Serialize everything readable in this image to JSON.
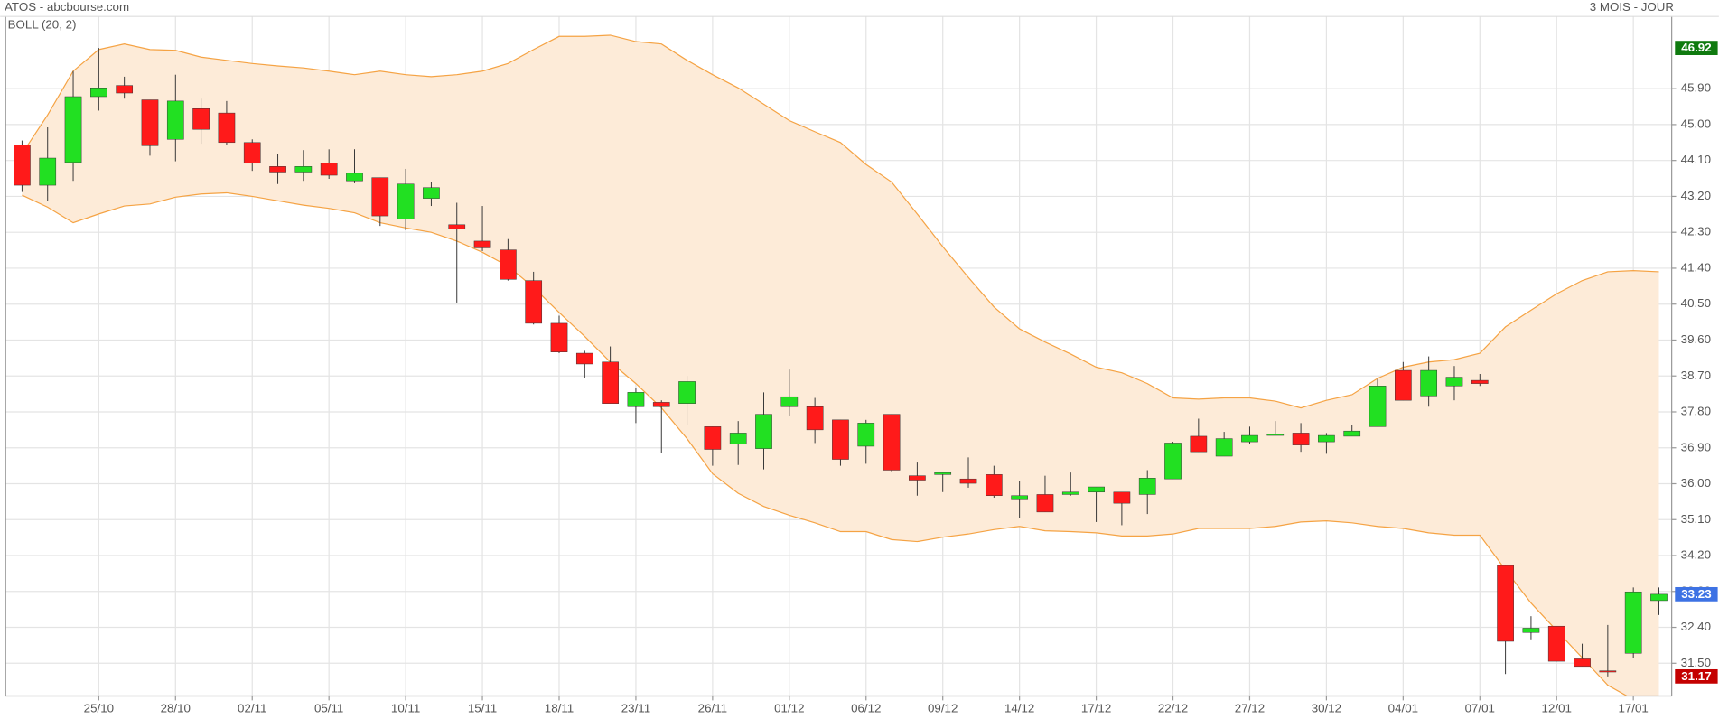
{
  "chart_data": {
    "type": "candlestick",
    "title": "ATOS - abcbourse.com",
    "subtitle": "3 MOIS - JOUR",
    "categories": [
      null,
      null,
      null,
      "25/10",
      null,
      null,
      "28/10",
      null,
      null,
      "02/11",
      null,
      null,
      "05/11",
      null,
      null,
      "10/11",
      null,
      null,
      "15/11",
      null,
      null,
      "18/11",
      null,
      null,
      "23/11",
      null,
      null,
      "26/11",
      null,
      null,
      "01/12",
      null,
      null,
      "06/12",
      null,
      null,
      "09/12",
      null,
      null,
      "14/12",
      null,
      null,
      "17/12",
      null,
      null,
      "22/12",
      null,
      null,
      "27/12",
      null,
      null,
      "30/12",
      null,
      null,
      "04/01",
      null,
      null,
      "07/01",
      null,
      null,
      "12/01",
      null,
      null,
      "17/01",
      null
    ],
    "open": [
      44.49,
      43.48,
      44.05,
      45.7,
      45.98,
      45.62,
      44.63,
      45.4,
      45.29,
      44.55,
      43.95,
      43.81,
      44.03,
      43.59,
      43.67,
      42.63,
      43.15,
      42.49,
      42.08,
      41.86,
      41.09,
      40.02,
      39.27,
      39.05,
      37.93,
      38.04,
      38.01,
      37.43,
      36.99,
      36.88,
      37.93,
      37.93,
      37.6,
      36.94,
      37.74,
      36.2,
      36.23,
      36.12,
      36.23,
      35.62,
      35.73,
      35.73,
      35.79,
      35.79,
      35.73,
      36.12,
      37.19,
      36.69,
      37.05,
      37.21,
      37.27,
      37.05,
      37.19,
      37.43,
      38.84,
      38.2,
      38.45,
      38.59,
      33.95,
      32.27,
      32.43,
      31.61,
      31.31,
      31.75,
      33.07
    ],
    "high": [
      44.6,
      44.93,
      46.34,
      46.92,
      46.2,
      45.62,
      46.25,
      45.65,
      45.59,
      44.63,
      44.27,
      44.36,
      44.38,
      44.38,
      43.67,
      43.89,
      43.56,
      43.04,
      42.96,
      42.13,
      41.31,
      40.21,
      39.33,
      39.44,
      38.4,
      38.09,
      38.7,
      37.43,
      37.57,
      38.29,
      38.86,
      38.15,
      37.6,
      37.6,
      37.74,
      36.53,
      36.28,
      36.66,
      36.45,
      36.06,
      36.2,
      36.28,
      35.92,
      35.79,
      36.34,
      37.05,
      37.63,
      37.3,
      37.43,
      37.57,
      37.52,
      37.27,
      37.46,
      38.62,
      39.05,
      39.19,
      38.95,
      38.75,
      33.95,
      32.68,
      32.43,
      31.99,
      32.46,
      33.4,
      33.4
    ],
    "low": [
      43.31,
      43.09,
      43.59,
      45.35,
      45.65,
      44.22,
      44.08,
      44.52,
      44.5,
      43.84,
      43.51,
      43.59,
      43.64,
      43.53,
      42.46,
      42.35,
      42.96,
      40.54,
      41.83,
      41.09,
      39.99,
      39.27,
      38.64,
      38.01,
      37.52,
      36.77,
      37.46,
      36.45,
      36.47,
      36.36,
      37.71,
      37.02,
      36.45,
      36.5,
      36.31,
      35.7,
      35.79,
      35.9,
      35.65,
      35.13,
      35.29,
      35.7,
      35.04,
      34.96,
      35.24,
      36.12,
      36.8,
      36.69,
      36.99,
      37.21,
      36.8,
      36.75,
      37.19,
      37.43,
      38.09,
      37.93,
      38.09,
      38.45,
      31.23,
      32.1,
      31.55,
      31.42,
      31.17,
      31.64,
      32.71
    ],
    "close": [
      43.48,
      44.16,
      45.7,
      45.92,
      45.79,
      44.47,
      45.59,
      44.88,
      44.55,
      44.03,
      43.81,
      43.95,
      43.73,
      43.78,
      42.71,
      43.51,
      43.42,
      42.38,
      41.91,
      41.12,
      40.02,
      39.3,
      39.0,
      38.01,
      38.29,
      37.93,
      38.56,
      36.86,
      37.27,
      37.74,
      38.18,
      37.35,
      36.61,
      37.52,
      36.34,
      36.09,
      36.28,
      36.01,
      35.7,
      35.7,
      35.29,
      35.79,
      35.92,
      35.51,
      36.14,
      37.02,
      36.8,
      37.13,
      37.21,
      37.24,
      36.97,
      37.21,
      37.32,
      38.45,
      38.09,
      38.84,
      38.67,
      38.51,
      32.05,
      32.38,
      31.55,
      31.42,
      31.28,
      33.29,
      33.23
    ],
    "up_color": "#22e022",
    "down_color": "#ff1a1a",
    "indicator": {
      "name": "BOLL (20, 2)",
      "color": "#f5a344",
      "fill": "#fdebd8",
      "upper": [
        44.27,
        45.24,
        46.34,
        46.88,
        47.02,
        46.88,
        46.86,
        46.69,
        46.61,
        46.53,
        46.47,
        46.42,
        46.34,
        46.25,
        46.34,
        46.25,
        46.2,
        46.25,
        46.34,
        46.53,
        46.88,
        47.21,
        47.21,
        47.24,
        47.08,
        47.02,
        46.61,
        46.25,
        45.92,
        45.51,
        45.1,
        44.82,
        44.55,
        44.0,
        43.56,
        42.76,
        41.94,
        41.17,
        40.43,
        39.88,
        39.55,
        39.25,
        38.92,
        38.78,
        38.51,
        38.15,
        38.12,
        38.15,
        38.15,
        38.07,
        37.9,
        38.09,
        38.23,
        38.64,
        38.92,
        39.05,
        39.11,
        39.27,
        39.93,
        40.35,
        40.76,
        41.09,
        41.31,
        41.34,
        41.31
      ],
      "lower": [
        43.23,
        42.93,
        42.54,
        42.76,
        42.96,
        43.01,
        43.18,
        43.26,
        43.29,
        43.2,
        43.09,
        42.98,
        42.9,
        42.79,
        42.54,
        42.41,
        42.3,
        42.08,
        41.8,
        41.45,
        40.92,
        40.29,
        39.69,
        39.05,
        38.51,
        37.9,
        37.13,
        36.25,
        35.76,
        35.43,
        35.21,
        35.02,
        34.8,
        34.8,
        34.6,
        34.55,
        34.66,
        34.74,
        34.85,
        34.93,
        34.82,
        34.8,
        34.77,
        34.69,
        34.69,
        34.74,
        34.88,
        34.88,
        34.88,
        34.93,
        35.04,
        35.07,
        35.02,
        34.93,
        34.88,
        34.77,
        34.71,
        34.71,
        33.84,
        33.01,
        32.32,
        31.64,
        30.95,
        30.59,
        30.48
      ]
    },
    "price_tags": [
      {
        "value": 46.92,
        "color": "#0f7a0f"
      },
      {
        "value": 33.23,
        "color": "#3d72e4"
      },
      {
        "value": 31.17,
        "color": "#c40000"
      }
    ],
    "ylim": [
      30.68,
      47.71
    ],
    "yticks": [
      {
        "value": 31.5,
        "label": "31.50"
      },
      {
        "value": 32.4,
        "label": "32.40"
      },
      {
        "value": 33.3,
        "label": "33.30"
      },
      {
        "value": 34.2,
        "label": "34.20"
      },
      {
        "value": 35.1,
        "label": "35.10"
      },
      {
        "value": 36.0,
        "label": "36.00"
      },
      {
        "value": 36.9,
        "label": "36.90"
      },
      {
        "value": 37.8,
        "label": "37.80"
      },
      {
        "value": 38.7,
        "label": "38.70"
      },
      {
        "value": 39.6,
        "label": "39.60"
      },
      {
        "value": 40.5,
        "label": "40.50"
      },
      {
        "value": 41.4,
        "label": "41.40"
      },
      {
        "value": 42.3,
        "label": "42.30"
      },
      {
        "value": 43.2,
        "label": "43.20"
      },
      {
        "value": 44.1,
        "label": "44.10"
      },
      {
        "value": 45.0,
        "label": "45.00"
      },
      {
        "value": 45.9,
        "label": "45.90"
      }
    ],
    "grid": true
  }
}
